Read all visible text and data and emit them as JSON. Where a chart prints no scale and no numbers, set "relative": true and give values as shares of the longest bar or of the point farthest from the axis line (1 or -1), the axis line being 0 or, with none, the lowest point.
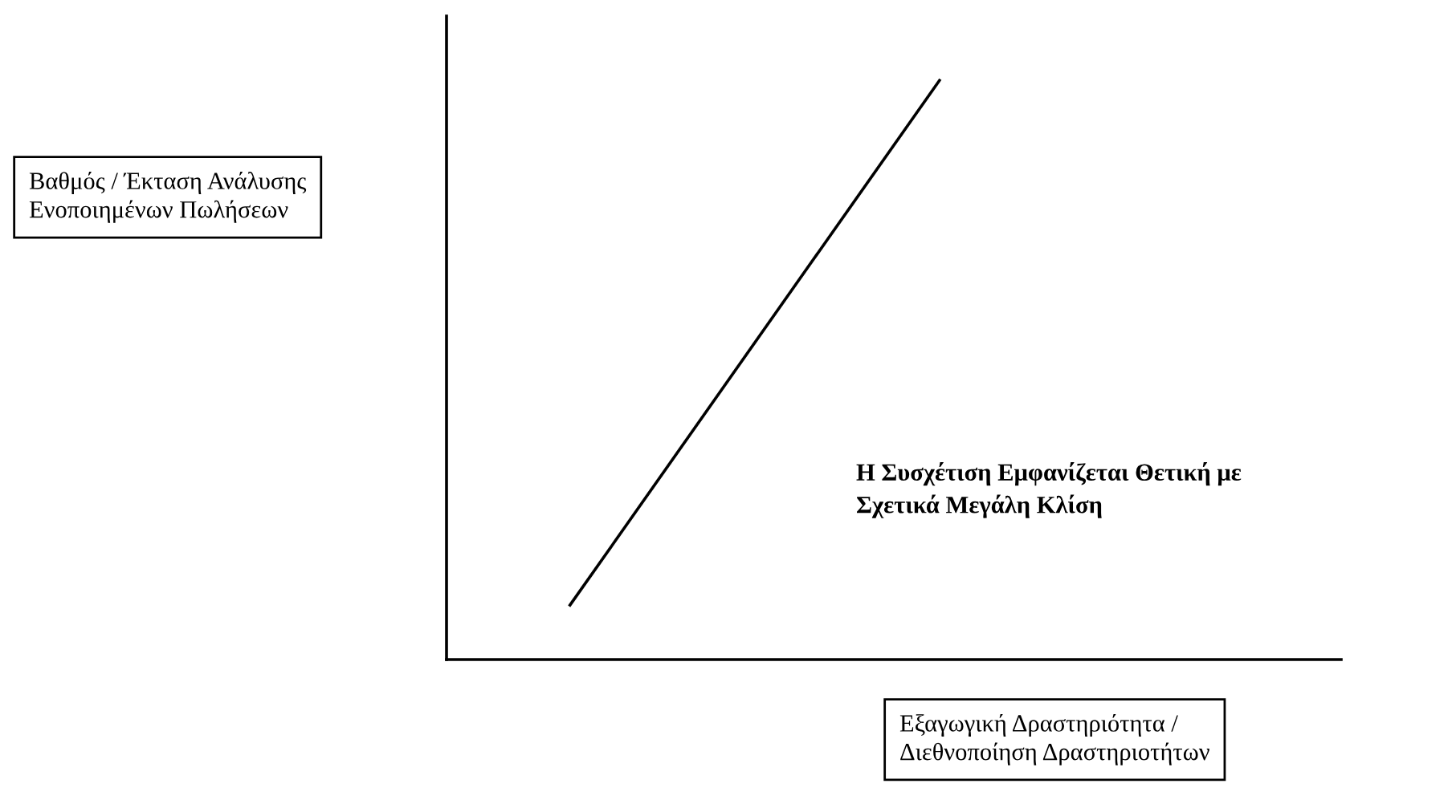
{
  "chart_data": {
    "type": "line",
    "relative": true,
    "categories": [
      null,
      null
    ],
    "series": [
      {
        "color": "#000000",
        "values": [
          0.094,
          1
        ]
      }
    ],
    "xlabel": "Εξαγωγική Δραστηριότητα /\nΔιεθνοποίηση Δραστηριοτήτων",
    "annotations": [
      "Βαθμός / Έκταση Ανάλυσης\nΕνοποιημένων Πωλήσεων",
      "Η Συσχέτιση Εμφανίζεται Θετική με\nΣχετικά Μεγάλη Κλίση"
    ],
    "grid": false,
    "legend": false,
    "marker": "none",
    "line_style": "solid"
  }
}
